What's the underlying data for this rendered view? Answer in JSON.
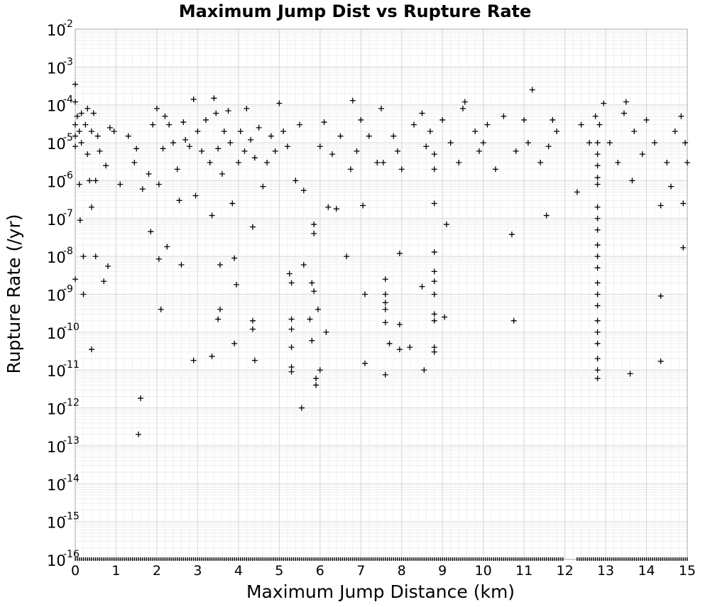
{
  "chart_data": {
    "type": "scatter",
    "title": "Maximum Jump Dist vs Rupture Rate",
    "xlabel": "Maximum Jump Distance (km)",
    "ylabel": "Rupture Rate (/yr)",
    "xlim": [
      0,
      15
    ],
    "ylim": [
      1e-16,
      0.01
    ],
    "y_scale": "log",
    "grid": true,
    "legend": "none",
    "marker": "plus",
    "marker_color": "#000000",
    "x_ticks": [
      "0",
      "1",
      "2",
      "3",
      "4",
      "5",
      "6",
      "7",
      "8",
      "9",
      "10",
      "11",
      "12",
      "13",
      "14",
      "15"
    ],
    "y_ticks": [
      {
        "base": "10",
        "exp": "-2"
      },
      {
        "base": "10",
        "exp": "-3"
      },
      {
        "base": "10",
        "exp": "-4"
      },
      {
        "base": "10",
        "exp": "-5"
      },
      {
        "base": "10",
        "exp": "-6"
      },
      {
        "base": "10",
        "exp": "-7"
      },
      {
        "base": "10",
        "exp": "-8"
      },
      {
        "base": "10",
        "exp": "-9"
      },
      {
        "base": "10",
        "exp": "-10"
      },
      {
        "base": "10",
        "exp": "-11"
      },
      {
        "base": "10",
        "exp": "-12"
      },
      {
        "base": "10",
        "exp": "-13"
      },
      {
        "base": "10",
        "exp": "-14"
      },
      {
        "base": "10",
        "exp": "-15"
      },
      {
        "base": "10",
        "exp": "-16"
      }
    ],
    "points": [
      [
        0.0,
        0.00035
      ],
      [
        0.0,
        0.00012
      ],
      [
        0.0,
        3e-05
      ],
      [
        0.0,
        1.5e-05
      ],
      [
        0.0,
        8e-06
      ],
      [
        0.0,
        2.5e-09
      ],
      [
        0.05,
        5e-05
      ],
      [
        0.1,
        2e-05
      ],
      [
        0.1,
        8e-07
      ],
      [
        0.12,
        9e-08
      ],
      [
        0.15,
        6e-05
      ],
      [
        0.15,
        1e-05
      ],
      [
        0.2,
        1e-08
      ],
      [
        0.2,
        1e-09
      ],
      [
        0.25,
        3e-05
      ],
      [
        0.3,
        8e-05
      ],
      [
        0.3,
        5e-06
      ],
      [
        0.35,
        1e-06
      ],
      [
        0.4,
        2e-05
      ],
      [
        0.4,
        3.5e-11
      ],
      [
        0.4,
        2e-07
      ],
      [
        0.45,
        6e-05
      ],
      [
        0.5,
        1e-06
      ],
      [
        0.5,
        1e-08
      ],
      [
        0.55,
        1.5e-05
      ],
      [
        0.6,
        6e-06
      ],
      [
        0.7,
        2.2e-09
      ],
      [
        0.75,
        2.5e-06
      ],
      [
        0.8,
        5.5e-09
      ],
      [
        0.85,
        2.5e-05
      ],
      [
        0.95,
        2e-05
      ],
      [
        1.1,
        8e-07
      ],
      [
        1.3,
        1.5e-05
      ],
      [
        1.45,
        3e-06
      ],
      [
        1.5,
        7e-06
      ],
      [
        1.55,
        2e-13
      ],
      [
        1.6,
        1.8e-12
      ],
      [
        1.65,
        6e-07
      ],
      [
        1.8,
        1.5e-06
      ],
      [
        1.85,
        4.5e-08
      ],
      [
        1.9,
        3e-05
      ],
      [
        2.0,
        8e-05
      ],
      [
        2.05,
        8e-07
      ],
      [
        2.05,
        8.5e-09
      ],
      [
        2.1,
        4e-10
      ],
      [
        2.15,
        7e-06
      ],
      [
        2.2,
        5e-05
      ],
      [
        2.25,
        1.8e-08
      ],
      [
        2.3,
        3e-05
      ],
      [
        2.4,
        1e-05
      ],
      [
        2.5,
        2e-06
      ],
      [
        2.55,
        3e-07
      ],
      [
        2.6,
        6e-09
      ],
      [
        2.65,
        3.5e-05
      ],
      [
        2.7,
        1.2e-05
      ],
      [
        2.8,
        8e-06
      ],
      [
        2.9,
        0.00014
      ],
      [
        2.9,
        1.8e-11
      ],
      [
        2.95,
        4e-07
      ],
      [
        3.0,
        2e-05
      ],
      [
        3.1,
        6e-06
      ],
      [
        3.2,
        4e-05
      ],
      [
        3.3,
        3e-06
      ],
      [
        3.35,
        1.2e-07
      ],
      [
        3.35,
        2.3e-11
      ],
      [
        3.4,
        0.00015
      ],
      [
        3.45,
        6e-05
      ],
      [
        3.5,
        7e-06
      ],
      [
        3.5,
        2.2e-10
      ],
      [
        3.55,
        4e-10
      ],
      [
        3.55,
        6e-09
      ],
      [
        3.6,
        1.5e-06
      ],
      [
        3.65,
        2e-05
      ],
      [
        3.75,
        7e-05
      ],
      [
        3.8,
        1e-05
      ],
      [
        3.85,
        2.5e-07
      ],
      [
        3.9,
        5e-11
      ],
      [
        3.9,
        9e-09
      ],
      [
        3.95,
        1.8e-09
      ],
      [
        4.0,
        3e-06
      ],
      [
        4.05,
        2e-05
      ],
      [
        4.15,
        6e-06
      ],
      [
        4.2,
        8e-05
      ],
      [
        4.3,
        1.2e-05
      ],
      [
        4.35,
        6e-08
      ],
      [
        4.35,
        2e-10
      ],
      [
        4.35,
        1.2e-10
      ],
      [
        4.4,
        4e-06
      ],
      [
        4.4,
        1.8e-11
      ],
      [
        4.5,
        2.5e-05
      ],
      [
        4.6,
        7e-07
      ],
      [
        4.7,
        3e-06
      ],
      [
        4.8,
        1.5e-05
      ],
      [
        4.9,
        6e-06
      ],
      [
        5.0,
        0.00011
      ],
      [
        5.1,
        2e-05
      ],
      [
        5.2,
        8e-06
      ],
      [
        5.25,
        3.5e-09
      ],
      [
        5.3,
        2.2e-10
      ],
      [
        5.3,
        1.2e-10
      ],
      [
        5.3,
        4e-11
      ],
      [
        5.3,
        1.2e-11
      ],
      [
        5.3,
        9e-12
      ],
      [
        5.3,
        2e-09
      ],
      [
        5.4,
        1e-06
      ],
      [
        5.5,
        3e-05
      ],
      [
        5.55,
        1e-12
      ],
      [
        5.6,
        5.5e-07
      ],
      [
        5.6,
        6e-09
      ],
      [
        5.75,
        2.2e-10
      ],
      [
        5.8,
        2e-09
      ],
      [
        5.8,
        6e-11
      ],
      [
        5.85,
        1.2e-09
      ],
      [
        5.85,
        4e-08
      ],
      [
        5.85,
        7e-08
      ],
      [
        5.9,
        4e-12
      ],
      [
        5.9,
        6e-12
      ],
      [
        5.95,
        4e-10
      ],
      [
        6.0,
        1e-11
      ],
      [
        6.0,
        8e-06
      ],
      [
        6.1,
        3.5e-05
      ],
      [
        6.15,
        1e-10
      ],
      [
        6.2,
        2e-07
      ],
      [
        6.3,
        5e-06
      ],
      [
        6.4,
        1.8e-07
      ],
      [
        6.5,
        1.5e-05
      ],
      [
        6.65,
        1e-08
      ],
      [
        6.75,
        2e-06
      ],
      [
        6.8,
        0.00013
      ],
      [
        6.9,
        6e-06
      ],
      [
        7.0,
        4e-05
      ],
      [
        7.05,
        2.2e-07
      ],
      [
        7.1,
        1.5e-11
      ],
      [
        7.1,
        1e-09
      ],
      [
        7.2,
        1.5e-05
      ],
      [
        7.4,
        3e-06
      ],
      [
        7.5,
        8e-05
      ],
      [
        7.55,
        3e-06
      ],
      [
        7.6,
        2.5e-09
      ],
      [
        7.6,
        6e-10
      ],
      [
        7.6,
        1.8e-10
      ],
      [
        7.6,
        7.5e-12
      ],
      [
        7.6,
        4e-10
      ],
      [
        7.6,
        1e-09
      ],
      [
        7.7,
        5e-11
      ],
      [
        7.8,
        1.5e-05
      ],
      [
        7.9,
        6e-06
      ],
      [
        7.95,
        3.5e-11
      ],
      [
        7.95,
        1.2e-08
      ],
      [
        7.95,
        1.6e-10
      ],
      [
        8.0,
        2e-06
      ],
      [
        8.2,
        4e-11
      ],
      [
        8.3,
        3e-05
      ],
      [
        8.5,
        6e-05
      ],
      [
        8.5,
        1.6e-09
      ],
      [
        8.55,
        1e-11
      ],
      [
        8.6,
        8e-06
      ],
      [
        8.7,
        2e-05
      ],
      [
        8.8,
        1.3e-08
      ],
      [
        8.8,
        4e-09
      ],
      [
        8.8,
        2.2e-09
      ],
      [
        8.8,
        1e-09
      ],
      [
        8.8,
        3e-10
      ],
      [
        8.8,
        2e-10
      ],
      [
        8.8,
        4e-11
      ],
      [
        8.8,
        3e-11
      ],
      [
        8.8,
        5e-06
      ],
      [
        8.8,
        2e-06
      ],
      [
        8.8,
        2.5e-07
      ],
      [
        9.0,
        4e-05
      ],
      [
        9.05,
        2.5e-10
      ],
      [
        9.1,
        7e-08
      ],
      [
        9.2,
        1e-05
      ],
      [
        9.4,
        3e-06
      ],
      [
        9.5,
        8e-05
      ],
      [
        9.55,
        0.00012
      ],
      [
        9.8,
        2e-05
      ],
      [
        9.9,
        6e-06
      ],
      [
        10.0,
        1e-05
      ],
      [
        10.1,
        3e-05
      ],
      [
        10.3,
        2e-06
      ],
      [
        10.5,
        5e-05
      ],
      [
        10.7,
        3.8e-08
      ],
      [
        10.75,
        2e-10
      ],
      [
        10.8,
        6e-06
      ],
      [
        11.0,
        4e-05
      ],
      [
        11.1,
        1e-05
      ],
      [
        11.2,
        0.00025
      ],
      [
        11.4,
        3e-06
      ],
      [
        11.55,
        1.2e-07
      ],
      [
        11.6,
        8e-06
      ],
      [
        11.7,
        4e-05
      ],
      [
        11.8,
        2e-05
      ],
      [
        12.3,
        5e-07
      ],
      [
        12.4,
        3e-05
      ],
      [
        12.6,
        1e-05
      ],
      [
        12.75,
        5e-05
      ],
      [
        12.8,
        1e-05
      ],
      [
        12.8,
        5e-06
      ],
      [
        12.8,
        2.5e-06
      ],
      [
        12.8,
        1.2e-06
      ],
      [
        12.8,
        8e-07
      ],
      [
        12.8,
        2e-07
      ],
      [
        12.8,
        1e-07
      ],
      [
        12.8,
        5e-08
      ],
      [
        12.8,
        2e-08
      ],
      [
        12.8,
        1e-08
      ],
      [
        12.8,
        5e-09
      ],
      [
        12.8,
        2e-09
      ],
      [
        12.8,
        1e-09
      ],
      [
        12.8,
        5e-10
      ],
      [
        12.8,
        2e-10
      ],
      [
        12.8,
        1e-10
      ],
      [
        12.8,
        5e-11
      ],
      [
        12.8,
        2e-11
      ],
      [
        12.8,
        1e-11
      ],
      [
        12.8,
        6e-12
      ],
      [
        12.85,
        3e-05
      ],
      [
        12.95,
        0.00011
      ],
      [
        13.1,
        1e-05
      ],
      [
        13.3,
        3e-06
      ],
      [
        13.45,
        6e-05
      ],
      [
        13.5,
        0.00012
      ],
      [
        13.6,
        8e-12
      ],
      [
        13.65,
        1e-06
      ],
      [
        13.7,
        2e-05
      ],
      [
        13.9,
        5e-06
      ],
      [
        14.0,
        4e-05
      ],
      [
        14.2,
        1e-05
      ],
      [
        14.35,
        2.2e-07
      ],
      [
        14.35,
        9e-10
      ],
      [
        14.35,
        1.7e-11
      ],
      [
        14.5,
        3e-06
      ],
      [
        14.6,
        7e-07
      ],
      [
        14.7,
        2e-05
      ],
      [
        14.85,
        5e-05
      ],
      [
        14.9,
        2.5e-07
      ],
      [
        14.9,
        1.7e-08
      ],
      [
        15.0,
        3e-06
      ],
      [
        14.95,
        1e-05
      ]
    ],
    "floor_points": [
      0.0,
      0.05,
      0.1,
      0.15,
      0.2,
      0.25,
      0.3,
      0.35,
      0.4,
      0.45,
      0.5,
      0.55,
      0.6,
      0.65,
      0.7,
      0.75,
      0.8,
      0.85,
      0.9,
      0.95,
      1.0,
      1.05,
      1.1,
      1.15,
      1.2,
      1.25,
      1.3,
      1.35,
      1.4,
      1.45,
      1.5,
      1.55,
      1.6,
      1.65,
      1.7,
      1.75,
      1.8,
      1.85,
      1.9,
      1.95,
      2.0,
      2.05,
      2.1,
      2.15,
      2.2,
      2.25,
      2.3,
      2.35,
      2.4,
      2.45,
      2.5,
      2.55,
      2.6,
      2.65,
      2.7,
      2.75,
      2.8,
      2.85,
      2.9,
      2.95,
      3.0,
      3.05,
      3.1,
      3.15,
      3.2,
      3.25,
      3.3,
      3.35,
      3.4,
      3.45,
      3.5,
      3.55,
      3.6,
      3.65,
      3.7,
      3.75,
      3.8,
      3.85,
      3.9,
      3.95,
      4.0,
      4.05,
      4.1,
      4.15,
      4.2,
      4.25,
      4.3,
      4.35,
      4.4,
      4.45,
      4.5,
      4.55,
      4.6,
      4.65,
      4.7,
      4.75,
      4.8,
      4.85,
      4.9,
      4.95,
      5.0,
      5.05,
      5.1,
      5.15,
      5.2,
      5.25,
      5.3,
      5.35,
      5.4,
      5.45,
      5.5,
      5.55,
      5.6,
      5.65,
      5.7,
      5.75,
      5.8,
      5.85,
      5.9,
      5.95,
      6.0,
      6.05,
      6.1,
      6.15,
      6.2,
      6.25,
      6.3,
      6.35,
      6.4,
      6.45,
      6.5,
      6.55,
      6.6,
      6.65,
      6.7,
      6.75,
      6.8,
      6.85,
      6.9,
      6.95,
      7.0,
      7.05,
      7.1,
      7.15,
      7.2,
      7.25,
      7.3,
      7.35,
      7.4,
      7.45,
      7.5,
      7.55,
      7.6,
      7.65,
      7.7,
      7.75,
      7.8,
      7.85,
      7.9,
      7.95,
      8.0,
      8.05,
      8.1,
      8.15,
      8.2,
      8.25,
      8.3,
      8.35,
      8.4,
      8.45,
      8.5,
      8.55,
      8.6,
      8.65,
      8.7,
      8.75,
      8.8,
      8.85,
      8.9,
      8.95,
      9.0,
      9.05,
      9.1,
      9.15,
      9.2,
      9.25,
      9.3,
      9.35,
      9.4,
      9.45,
      9.5,
      9.55,
      9.6,
      9.65,
      9.7,
      9.75,
      9.8,
      9.85,
      9.9,
      9.95,
      10.0,
      10.05,
      10.1,
      10.15,
      10.2,
      10.25,
      10.3,
      10.35,
      10.4,
      10.45,
      10.5,
      10.55,
      10.6,
      10.65,
      10.7,
      10.75,
      10.8,
      10.85,
      10.9,
      10.95,
      11.0,
      11.05,
      11.1,
      11.15,
      11.2,
      11.25,
      11.3,
      11.35,
      11.4,
      11.45,
      11.5,
      11.55,
      11.6,
      11.65,
      11.7,
      11.75,
      11.8,
      11.85,
      11.9,
      11.95,
      12.3,
      12.35,
      12.4,
      12.45,
      12.5,
      12.55,
      12.6,
      12.65,
      12.7,
      12.75,
      12.8,
      12.85,
      12.9,
      12.95,
      13.0,
      13.05,
      13.1,
      13.15,
      13.2,
      13.25,
      13.3,
      13.35,
      13.4,
      13.45,
      13.5,
      13.55,
      13.6,
      13.65,
      13.7,
      13.75,
      13.8,
      13.85,
      13.9,
      13.95,
      14.0,
      14.05,
      14.1,
      14.15,
      14.2,
      14.25,
      14.3,
      14.35,
      14.4,
      14.45,
      14.5,
      14.55,
      14.6,
      14.65,
      14.7,
      14.75,
      14.8,
      14.85,
      14.9,
      14.95,
      15.0
    ],
    "floor_value": 1e-16
  }
}
